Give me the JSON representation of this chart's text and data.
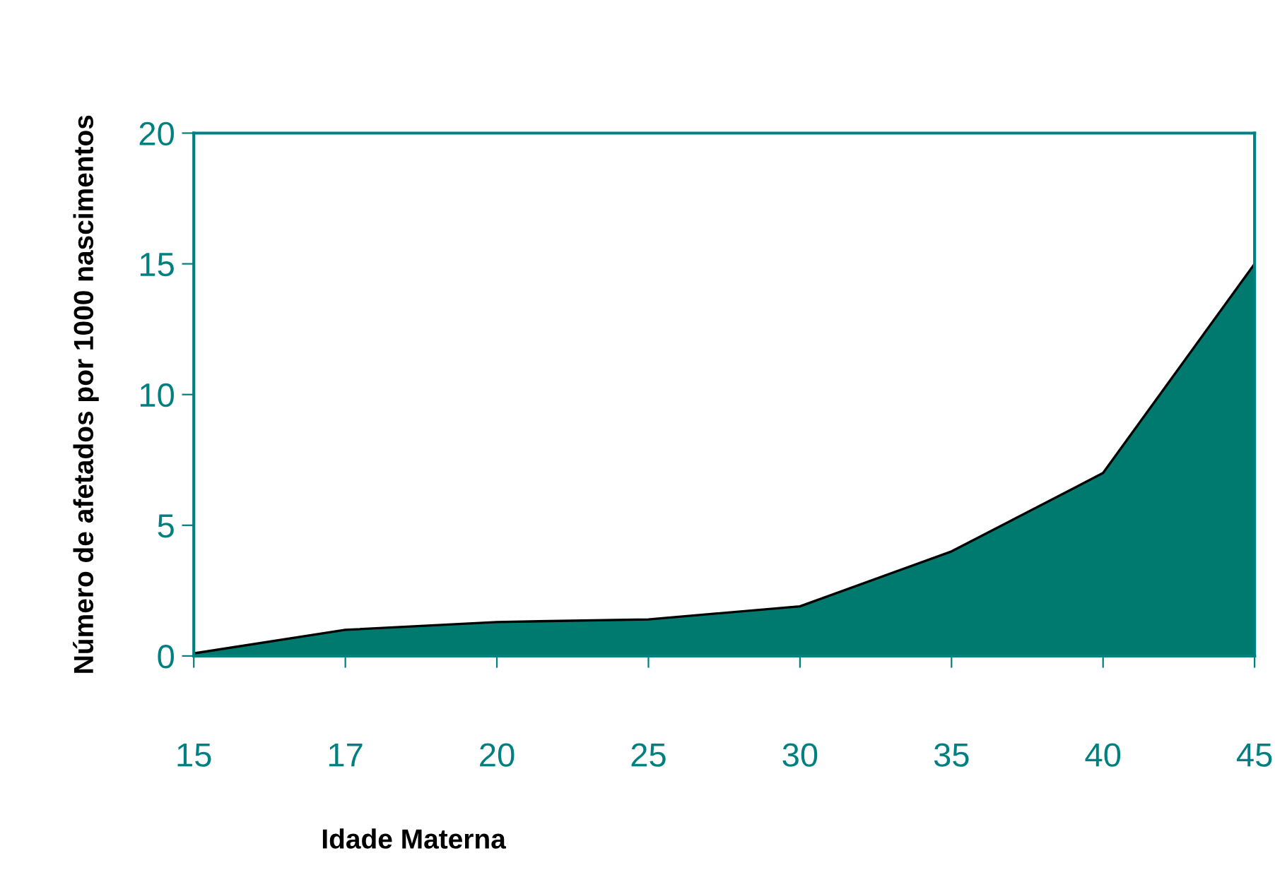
{
  "chart_data": {
    "type": "area",
    "xlabel": "Idade Materna",
    "ylabel": "Número de afetados por 1000 nascimentos",
    "categories": [
      "15",
      "17",
      "20",
      "25",
      "30",
      "35",
      "40",
      "45"
    ],
    "series": [
      {
        "color": "#007a6e",
        "values": [
          0.1,
          1.0,
          1.3,
          1.4,
          1.9,
          4.0,
          7.0,
          15.0
        ]
      }
    ],
    "ylim": [
      0,
      20
    ],
    "yticks": [
      0,
      5,
      10,
      15,
      20
    ],
    "grid": false,
    "legend": false
  }
}
